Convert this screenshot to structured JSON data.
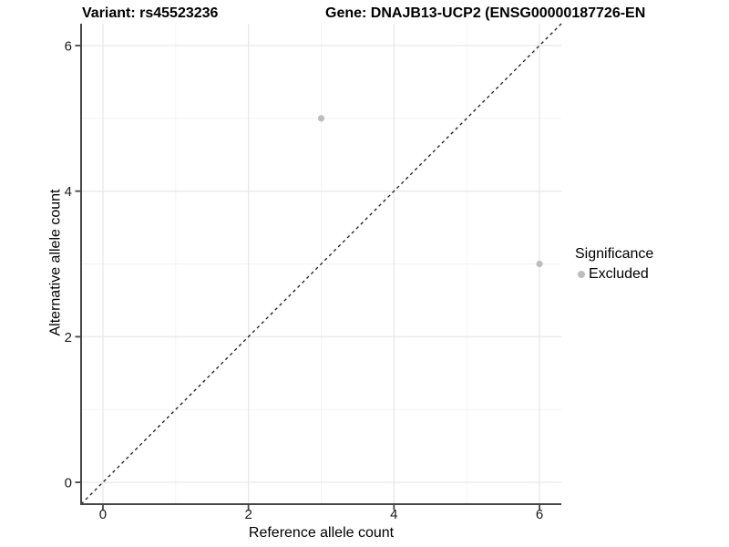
{
  "chart_data": {
    "type": "scatter",
    "title_left": "Variant: rs45523236",
    "title_right": "Gene: DNAJB13-UCP2 (ENSG00000187726-EN",
    "xlabel": "Reference allele count",
    "ylabel": "Alternative allele count",
    "xlim": [
      -0.3,
      6.3
    ],
    "ylim": [
      -0.3,
      6.3
    ],
    "xticks": [
      0,
      2,
      4,
      6
    ],
    "yticks": [
      0,
      2,
      4,
      6
    ],
    "minor_xticks": [
      1,
      3,
      5
    ],
    "minor_yticks": [
      1,
      3,
      5
    ],
    "grid": "on",
    "identity_line": {
      "style": "dashed",
      "from": [
        -0.3,
        -0.3
      ],
      "to": [
        6.3,
        6.3
      ]
    },
    "series": [
      {
        "name": "Excluded",
        "color": "#bdbdbd",
        "points": [
          [
            3,
            5
          ],
          [
            6,
            3
          ]
        ]
      }
    ],
    "legend": {
      "title": "Significance",
      "position": "right",
      "items": [
        {
          "label": "Excluded",
          "color": "#bdbdbd",
          "marker": "circle"
        }
      ]
    }
  },
  "style": {
    "background": "#ffffff",
    "axis_line": "#474747",
    "grid_major": "#e6e6e6",
    "grid_minor": "#f2f2f2",
    "dashed_line": "#1a1a1a",
    "tick_label_color": "#1a1a1a",
    "point_color": "#bdbdbd"
  }
}
